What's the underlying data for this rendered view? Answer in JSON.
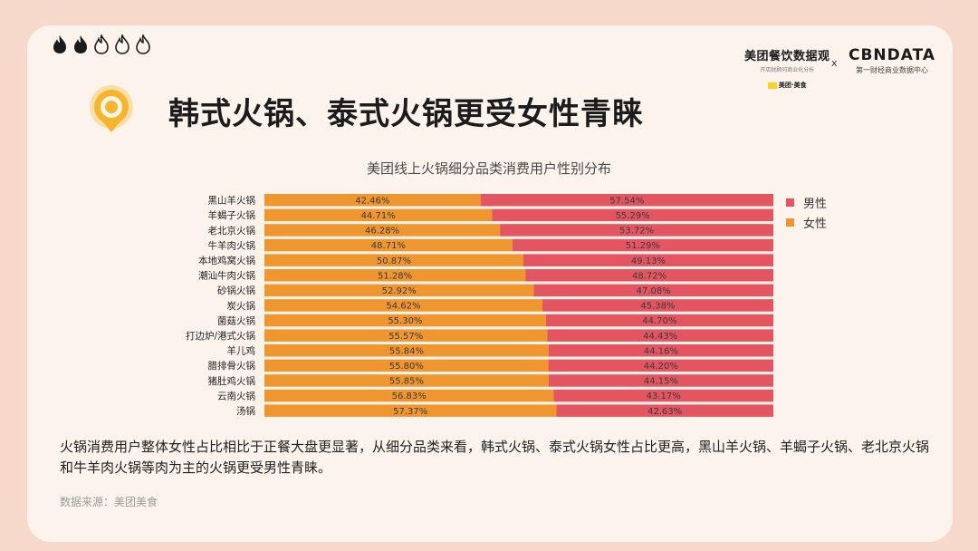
{
  "header": {
    "flames": {
      "filled": 2,
      "total": 5,
      "icon": "flame-icon"
    },
    "logo_meituan": {
      "main": "美团餐饮数据观",
      "sub": "开店财顾问商业化分析",
      "mini": "美团·美食"
    },
    "logo_separator": "x",
    "logo_cbndata": {
      "main": "CBNDATA",
      "sub": "第一财经商业数据中心"
    }
  },
  "page_title": "韩式火锅、泰式火锅更受女性青睐",
  "summary": "火锅消费用户整体女性占比相比于正餐大盘更显著，从细分品类来看，韩式火锅、泰式火锅女性占比更高，黑山羊火锅、羊蝎子火锅、老北京火锅和牛羊肉火锅等肉为主的火锅更受男性青睐。",
  "source": "数据来源：美团美食",
  "colors": {
    "female": "#f0962e",
    "male": "#e35561",
    "accent": "#f5b62b"
  },
  "chart_data": {
    "type": "bar",
    "stacked": true,
    "orientation": "horizontal",
    "percent": true,
    "title": "美团线上火锅细分品类消费用户性别分布",
    "categories": [
      "黑山羊火锅",
      "羊蝎子火锅",
      "老北京火锅",
      "牛羊肉火锅",
      "本地鸡窝火锅",
      "潮汕牛肉火锅",
      "砂锅火锅",
      "炭火锅",
      "菌菇火锅",
      "打边炉/港式火锅",
      "羊儿鸡",
      "腊排骨火锅",
      "猪肚鸡火锅",
      "云南火锅",
      "汤锅"
    ],
    "series": [
      {
        "name": "女性",
        "values": [
          42.46,
          44.71,
          46.28,
          48.71,
          50.87,
          51.28,
          52.92,
          54.62,
          55.3,
          55.57,
          55.84,
          55.8,
          55.85,
          56.83,
          57.37
        ]
      },
      {
        "name": "男性",
        "values": [
          57.54,
          55.29,
          53.72,
          51.29,
          49.13,
          48.72,
          47.08,
          45.38,
          44.7,
          44.43,
          44.16,
          44.2,
          44.15,
          43.17,
          42.63
        ]
      }
    ],
    "xlim": [
      0,
      100
    ],
    "legend": "right",
    "grid": false
  }
}
